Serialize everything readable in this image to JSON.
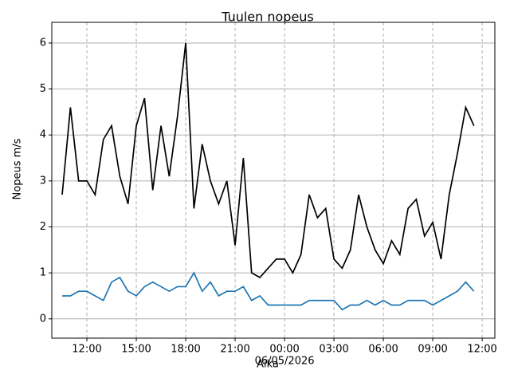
{
  "chart_data": {
    "type": "line",
    "title": "Tuulen nopeus",
    "xlabel": "Aika",
    "ylabel": "Nopeus m/s",
    "x_annotation": "06/05/2026",
    "x": [
      -13.5,
      -13,
      -12.5,
      -12,
      -11.5,
      -11,
      -10.5,
      -10,
      -9.5,
      -9,
      -8.5,
      -8,
      -7.5,
      -7,
      -6.5,
      -6,
      -5.5,
      -5,
      -4.5,
      -4,
      -3.5,
      -3,
      -2.5,
      -2,
      -1.5,
      -1,
      -0.5,
      0,
      0.5,
      1,
      1.5,
      2,
      2.5,
      3,
      3.5,
      4,
      4.5,
      5,
      5.5,
      6,
      6.5,
      7,
      7.5,
      8,
      8.5,
      9,
      9.5,
      10,
      10.5,
      11,
      11.5
    ],
    "series": [
      {
        "color": "#000000",
        "values": [
          2.7,
          4.6,
          3.0,
          3.0,
          2.7,
          3.9,
          4.2,
          3.1,
          2.5,
          4.2,
          4.8,
          2.8,
          4.2,
          3.1,
          4.4,
          6.0,
          2.4,
          3.8,
          3.0,
          2.5,
          3.0,
          1.6,
          3.5,
          1.0,
          0.9,
          1.1,
          1.3,
          1.3,
          1.0,
          1.4,
          2.7,
          2.2,
          2.4,
          1.3,
          1.1,
          1.5,
          2.7,
          2.0,
          1.5,
          1.2,
          1.7,
          1.4,
          2.4,
          2.6,
          1.8,
          2.1,
          1.3,
          2.7,
          3.6,
          4.6,
          4.2
        ]
      },
      {
        "color": "#1f77b4",
        "values": [
          0.5,
          0.5,
          0.6,
          0.6,
          0.5,
          0.4,
          0.8,
          0.9,
          0.6,
          0.5,
          0.7,
          0.8,
          0.7,
          0.6,
          0.7,
          0.7,
          1.0,
          0.6,
          0.8,
          0.5,
          0.6,
          0.6,
          0.7,
          0.4,
          0.5,
          0.3,
          0.3,
          0.3,
          0.3,
          0.3,
          0.4,
          0.4,
          0.4,
          0.4,
          0.2,
          0.3,
          0.3,
          0.4,
          0.3,
          0.4,
          0.3,
          0.3,
          0.4,
          0.4,
          0.4,
          0.3,
          0.4,
          0.5,
          0.6,
          0.8,
          0.6
        ]
      }
    ],
    "xlim": [
      -14.13,
      12.77
    ],
    "ylim": [
      -0.42,
      6.45
    ],
    "xticks": [
      {
        "value": -12,
        "label": "12:00"
      },
      {
        "value": -9,
        "label": "15:00"
      },
      {
        "value": -6,
        "label": "18:00"
      },
      {
        "value": -3,
        "label": "21:00"
      },
      {
        "value": 0,
        "label": "00:00"
      },
      {
        "value": 3,
        "label": "03:00"
      },
      {
        "value": 6,
        "label": "06:00"
      },
      {
        "value": 9,
        "label": "09:00"
      },
      {
        "value": 12,
        "label": "12:00"
      }
    ],
    "yticks": [
      0,
      1,
      2,
      3,
      4,
      5,
      6
    ],
    "grid": true
  }
}
